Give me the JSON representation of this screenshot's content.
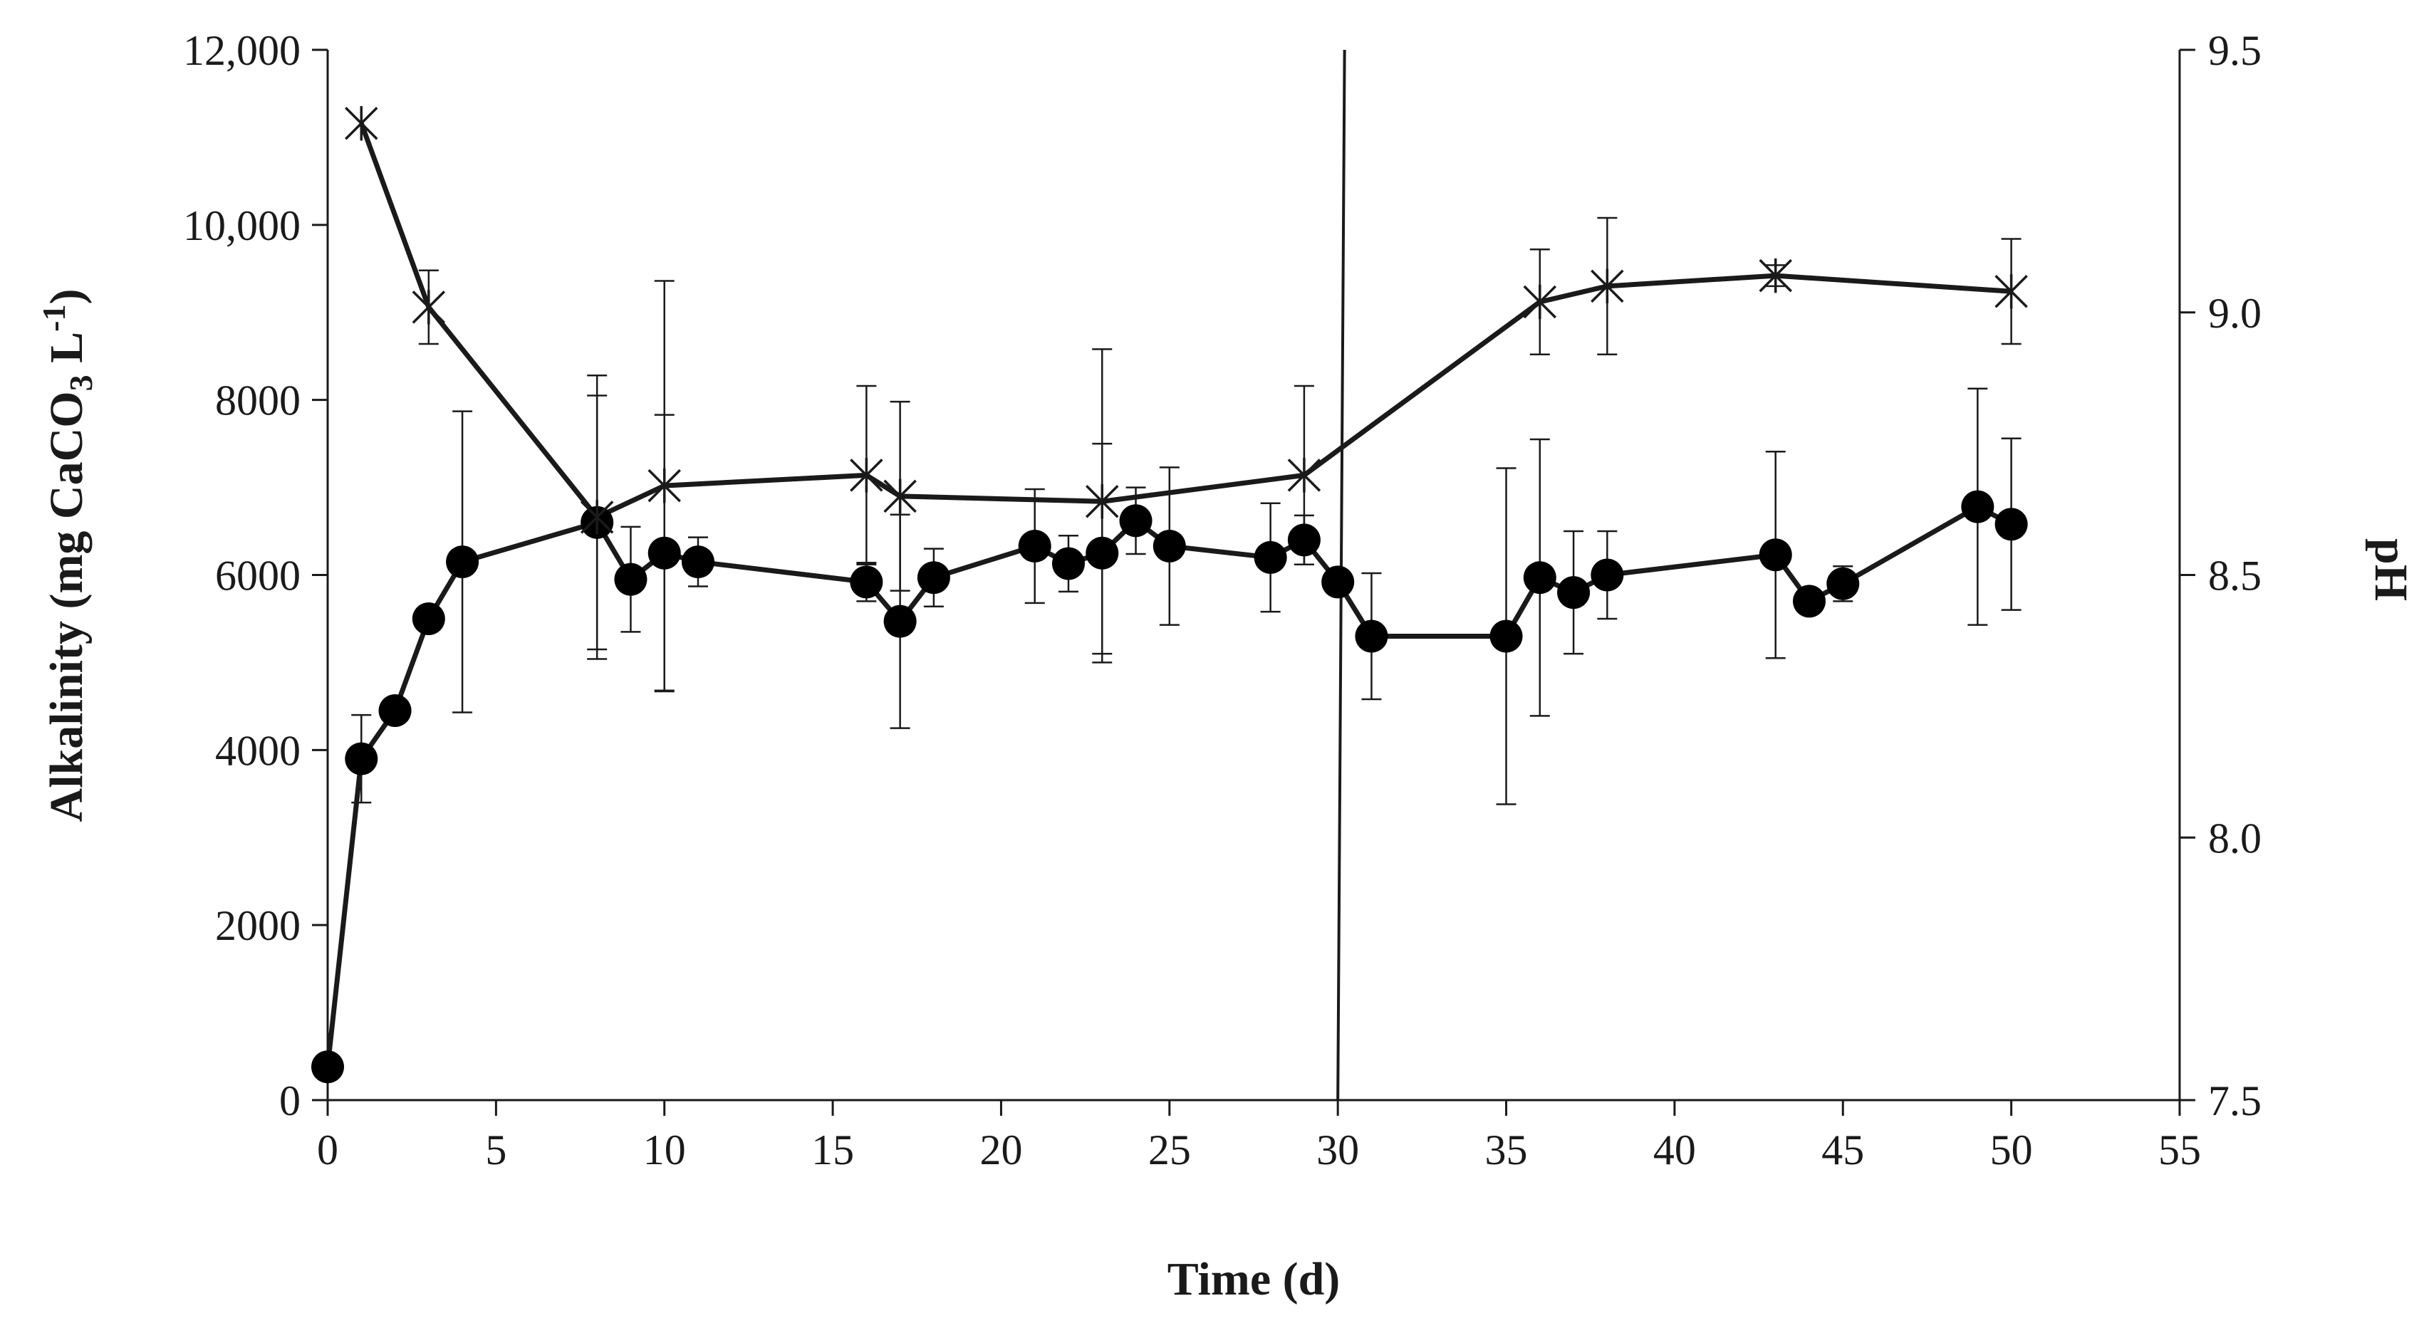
{
  "chart_data": {
    "type": "line",
    "title": "",
    "xlabel": "Time (d)",
    "ylabel": {
      "main": "Alkalinity (mg CaCO",
      "sub3": "3",
      "unit": " L",
      "sup": "-1",
      "close": ")"
    },
    "y2label": "pH",
    "xlim": [
      0,
      55
    ],
    "ylim": [
      0,
      12000
    ],
    "y2lim": [
      7.5,
      9.5
    ],
    "x_ticks": [
      {
        "value": 0,
        "label": "0"
      },
      {
        "value": 5,
        "label": "5"
      },
      {
        "value": 10,
        "label": "10"
      },
      {
        "value": 15,
        "label": "15"
      },
      {
        "value": 20,
        "label": "20"
      },
      {
        "value": 25,
        "label": "25"
      },
      {
        "value": 30,
        "label": "30"
      },
      {
        "value": 35,
        "label": "35"
      },
      {
        "value": 40,
        "label": "40"
      },
      {
        "value": 45,
        "label": "45"
      },
      {
        "value": 50,
        "label": "50"
      },
      {
        "value": 55,
        "label": "55"
      }
    ],
    "y_ticks": [
      {
        "value": 0,
        "label": "0"
      },
      {
        "value": 2000,
        "label": "2000"
      },
      {
        "value": 4000,
        "label": "4000"
      },
      {
        "value": 6000,
        "label": "6000"
      },
      {
        "value": 8000,
        "label": "8000"
      },
      {
        "value": 10000,
        "label": "10,000"
      },
      {
        "value": 12000,
        "label": "12,000"
      }
    ],
    "y2_ticks": [
      {
        "value": 7.5,
        "label": "7.5"
      },
      {
        "value": 8.0,
        "label": "8.0"
      },
      {
        "value": 8.5,
        "label": "8.5"
      },
      {
        "value": 9.0,
        "label": "9.0"
      },
      {
        "value": 9.5,
        "label": "9.5"
      }
    ],
    "vertical_line": {
      "x_top": 30.2,
      "x_bottom": 30.0
    },
    "series": [
      {
        "name": "Alkalinity",
        "axis": "left",
        "marker": "circle",
        "points": [
          {
            "x": 0,
            "y": 380,
            "err": 0
          },
          {
            "x": 1,
            "y": 3900,
            "err": 500
          },
          {
            "x": 2,
            "y": 4450,
            "err": 0
          },
          {
            "x": 3,
            "y": 5500,
            "err": 0
          },
          {
            "x": 4,
            "y": 6150,
            "err": 1720
          },
          {
            "x": 8,
            "y": 6600,
            "err": 1450
          },
          {
            "x": 9,
            "y": 5950,
            "err": 600
          },
          {
            "x": 10,
            "y": 6250,
            "err": 1580
          },
          {
            "x": 11,
            "y": 6150,
            "err": 280
          },
          {
            "x": 16,
            "y": 5920,
            "err": 220
          },
          {
            "x": 17,
            "y": 5470,
            "err": 1220
          },
          {
            "x": 18,
            "y": 5970,
            "err": 330
          },
          {
            "x": 21,
            "y": 6330,
            "err": 650
          },
          {
            "x": 22,
            "y": 6130,
            "err": 320
          },
          {
            "x": 23,
            "y": 6250,
            "err": 1250
          },
          {
            "x": 24,
            "y": 6620,
            "err": 380
          },
          {
            "x": 25,
            "y": 6330,
            "err": 900
          },
          {
            "x": 28,
            "y": 6200,
            "err": 620
          },
          {
            "x": 29,
            "y": 6400,
            "err": 280
          },
          {
            "x": 30,
            "y": 5920,
            "err": 0
          },
          {
            "x": 31,
            "y": 5300,
            "err": 720
          },
          {
            "x": 35,
            "y": 5300,
            "err": 1920
          },
          {
            "x": 36,
            "y": 5970,
            "err": 1580
          },
          {
            "x": 37,
            "y": 5800,
            "err": 700
          },
          {
            "x": 38,
            "y": 6000,
            "err": 500
          },
          {
            "x": 43,
            "y": 6230,
            "err": 1180
          },
          {
            "x": 44,
            "y": 5700,
            "err": 0
          },
          {
            "x": 45,
            "y": 5900,
            "err": 200
          },
          {
            "x": 49,
            "y": 6780,
            "err": 1350
          },
          {
            "x": 50,
            "y": 6580,
            "err": 980
          }
        ]
      },
      {
        "name": "pH",
        "axis": "right",
        "marker": "asterisk",
        "points": [
          {
            "x": 1,
            "y": 9.36,
            "err": 0
          },
          {
            "x": 3,
            "y": 9.01,
            "err": 0.07
          },
          {
            "x": 8,
            "y": 8.61,
            "err": 0.27
          },
          {
            "x": 10,
            "y": 8.67,
            "err": 0.39
          },
          {
            "x": 16,
            "y": 8.69,
            "err": 0.17
          },
          {
            "x": 17,
            "y": 8.65,
            "err": 0.18
          },
          {
            "x": 23,
            "y": 8.64,
            "err": 0.29
          },
          {
            "x": 29,
            "y": 8.69,
            "err": 0.17
          },
          {
            "x": 36,
            "y": 9.02,
            "err": 0.1
          },
          {
            "x": 38,
            "y": 9.05,
            "err": 0.13
          },
          {
            "x": 43,
            "y": 9.07,
            "err": 0.02
          },
          {
            "x": 50,
            "y": 9.04,
            "err": 0.1
          }
        ]
      }
    ]
  }
}
